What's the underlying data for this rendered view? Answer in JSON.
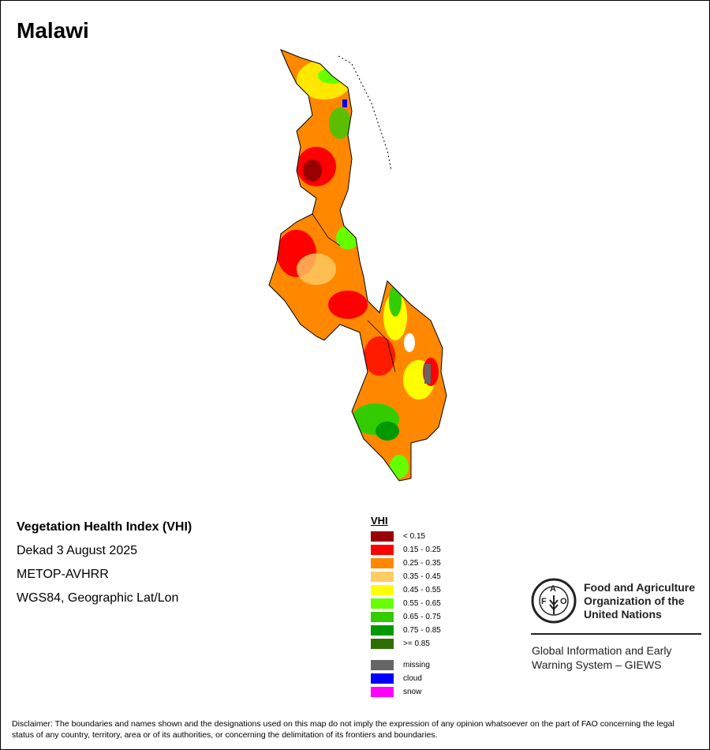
{
  "title": "Malawi",
  "info": {
    "index_name": "Vegetation Health Index (VHI)",
    "period": "Dekad 3 August 2025",
    "sensor": "METOP-AVHRR",
    "projection": "WGS84, Geographic Lat/Lon"
  },
  "legend": {
    "title": "VHI",
    "classes": [
      {
        "label": "< 0.15",
        "color": "#990000"
      },
      {
        "label": "0.15 - 0.25",
        "color": "#ff0000"
      },
      {
        "label": "0.25 - 0.35",
        "color": "#ff8800"
      },
      {
        "label": "0.35 - 0.45",
        "color": "#ffcc66"
      },
      {
        "label": "0.45 - 0.55",
        "color": "#ffff00"
      },
      {
        "label": "0.55 - 0.65",
        "color": "#66ff00"
      },
      {
        "label": "0.65 - 0.75",
        "color": "#33cc00"
      },
      {
        "label": "0.75 - 0.85",
        "color": "#009900"
      },
      {
        "label": ">= 0.85",
        "color": "#2d6e00"
      }
    ],
    "other": [
      {
        "label": "missing",
        "color": "#666666"
      },
      {
        "label": "cloud",
        "color": "#0000ff"
      },
      {
        "label": "snow",
        "color": "#ff00ff"
      }
    ]
  },
  "logo": {
    "fao_letters": "FAO",
    "fao_motto": "FIAT PANIS",
    "org_name_line1": "Food and Agriculture",
    "org_name_line2": "Organization of the",
    "org_name_line3": "United Nations",
    "giews_line1": "Global Information and Early",
    "giews_line2": "Warning System – GIEWS"
  },
  "disclaimer": "Disclaimer: The boundaries and names shown and the designations used on this map do not imply the expression of any opinion whatsoever on the part of FAO concerning the legal status of any country, territory, area or of its authorities, or concerning the delimitation of its frontiers and boundaries."
}
